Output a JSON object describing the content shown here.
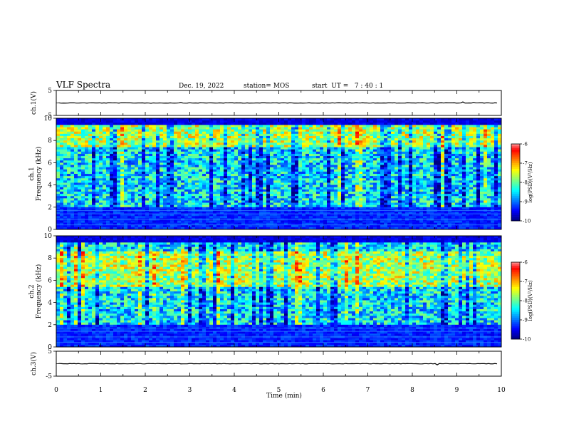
{
  "header": {
    "title": "VLF Spectra",
    "date": "Dec. 19, 2022",
    "station": "station= MOS",
    "start": "start  UT =   7 : 40 : 1"
  },
  "chart_data": [
    {
      "type": "line",
      "panel": "ch1-waveform",
      "ylabel": "ch.1(V)",
      "ylim": [
        -5,
        5
      ],
      "yticks": [
        "5",
        "-5"
      ],
      "series": [
        {
          "values_approx_constant": 0
        }
      ]
    },
    {
      "type": "heatmap",
      "panel": "ch1-spectrogram",
      "ylabel": "ch.1\nFrequency (kHz)",
      "ylim": [
        0,
        10
      ],
      "yticks": [
        "0",
        "2",
        "4",
        "6",
        "8",
        "10"
      ],
      "colorbar": {
        "label": "log(PSD)(V²/Hz)",
        "range": [
          -10,
          -6
        ],
        "ticks": [
          "-6",
          "-7",
          "-8",
          "-9",
          "-10"
        ]
      }
    },
    {
      "type": "heatmap",
      "panel": "ch2-spectrogram",
      "ylabel": "ch.2\nFrequency (kHz)",
      "ylim": [
        0,
        10
      ],
      "yticks": [
        "0",
        "2",
        "4",
        "6",
        "8",
        "10"
      ],
      "colorbar": {
        "label": "log(PSD)(V²/Hz)",
        "range": [
          -10,
          -6
        ],
        "ticks": [
          "-6",
          "-7",
          "-8",
          "-9",
          "-10"
        ]
      }
    },
    {
      "type": "line",
      "panel": "ch3-waveform",
      "ylabel": "ch.3(V)",
      "ylim": [
        -5,
        5
      ],
      "yticks": [
        "5",
        "-5"
      ],
      "series": [
        {
          "values_approx_constant": 0
        }
      ]
    }
  ],
  "xaxis": {
    "label": "Time  (min)",
    "range": [
      0,
      10
    ],
    "ticks": [
      "0",
      "1",
      "2",
      "3",
      "4",
      "5",
      "6",
      "7",
      "8",
      "9",
      "10"
    ]
  },
  "colors": {
    "jet": [
      "#00007f",
      "#0000ff",
      "#007fff",
      "#00ffff",
      "#7fff7f",
      "#ffff00",
      "#ff7f00",
      "#ff0000",
      "#ff4040",
      "#ffffff"
    ]
  }
}
